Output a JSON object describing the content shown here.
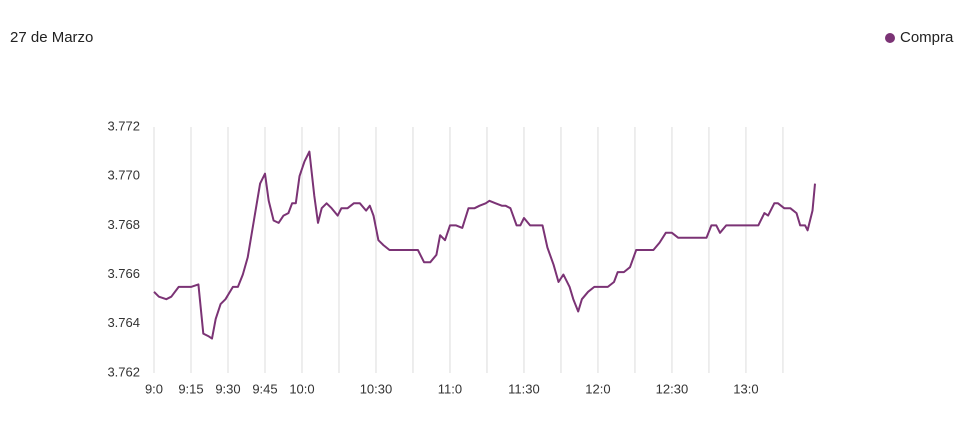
{
  "chart_data": {
    "type": "line",
    "title": "27 de Marzo",
    "x": [
      540,
      542,
      545,
      547,
      550,
      552,
      555,
      558,
      560,
      562,
      563.5,
      565,
      567,
      569,
      572,
      574,
      576,
      578,
      580.5,
      583,
      585,
      586.5,
      588.5,
      590.5,
      592.5,
      594.5,
      596,
      597.5,
      599,
      601,
      603,
      605,
      606.5,
      608,
      610,
      612,
      614.5,
      616,
      618.5,
      621,
      623.5,
      626,
      627.5,
      629,
      631,
      633,
      635.5,
      639.5,
      644,
      647,
      649.5,
      652,
      654.5,
      656,
      658,
      660,
      662.5,
      665,
      667.5,
      670,
      672,
      674.5,
      676,
      678.5,
      681,
      682.5,
      684.5,
      687,
      688.5,
      690,
      692.5,
      695,
      697.5,
      699.5,
      702,
      704,
      706,
      708.5,
      710,
      712,
      713.5,
      716,
      718.5,
      721,
      724,
      726.5,
      728,
      730.5,
      733,
      735.5,
      738,
      740,
      742.5,
      745,
      747.5,
      750,
      752.5,
      755.5,
      759,
      761.5,
      764,
      766,
      768,
      769.5,
      772,
      775,
      779,
      782.5,
      785,
      787.5,
      789,
      791.5,
      793,
      795.5,
      798,
      800.5,
      802,
      804,
      805,
      807,
      808
    ],
    "series": [
      {
        "name": "Compra",
        "color": "#7b3375",
        "values": [
          3.7653,
          3.7651,
          3.765,
          3.7651,
          3.7655,
          3.7655,
          3.7655,
          3.7656,
          3.7636,
          3.7635,
          3.7634,
          3.7642,
          3.7648,
          3.765,
          3.7655,
          3.7655,
          3.766,
          3.7667,
          3.7682,
          3.7697,
          3.7701,
          3.769,
          3.7682,
          3.7681,
          3.7684,
          3.7685,
          3.7689,
          3.7689,
          3.77,
          3.7706,
          3.771,
          3.7692,
          3.7681,
          3.7687,
          3.7689,
          3.7687,
          3.7684,
          3.7687,
          3.7687,
          3.7689,
          3.7689,
          3.7686,
          3.7688,
          3.7684,
          3.7674,
          3.7672,
          3.767,
          3.767,
          3.767,
          3.767,
          3.7665,
          3.7665,
          3.7668,
          3.7676,
          3.7674,
          3.768,
          3.768,
          3.7679,
          3.7687,
          3.7687,
          3.7688,
          3.7689,
          3.769,
          3.7689,
          3.7688,
          3.7688,
          3.7687,
          3.768,
          3.768,
          3.7683,
          3.768,
          3.768,
          3.768,
          3.7671,
          3.7664,
          3.7657,
          3.766,
          3.7655,
          3.765,
          3.7645,
          3.765,
          3.7653,
          3.7655,
          3.7655,
          3.7655,
          3.7657,
          3.7661,
          3.7661,
          3.7663,
          3.767,
          3.767,
          3.767,
          3.767,
          3.7673,
          3.7677,
          3.7677,
          3.7675,
          3.7675,
          3.7675,
          3.7675,
          3.7675,
          3.768,
          3.768,
          3.7677,
          3.768,
          3.768,
          3.768,
          3.768,
          3.768,
          3.7685,
          3.7684,
          3.7689,
          3.7689,
          3.7687,
          3.7687,
          3.7685,
          3.768,
          3.768,
          3.7678,
          3.7686,
          3.7697
        ]
      }
    ],
    "xlim": [
      540,
      808
    ],
    "xticks": [
      {
        "value": 540,
        "label": "9:0"
      },
      {
        "value": 555,
        "label": "9:15"
      },
      {
        "value": 570,
        "label": "9:30"
      },
      {
        "value": 585,
        "label": "9:45"
      },
      {
        "value": 600,
        "label": "10:0"
      },
      {
        "value": 615,
        "label": null
      },
      {
        "value": 630,
        "label": "10:30"
      },
      {
        "value": 645,
        "label": null
      },
      {
        "value": 660,
        "label": "11:0"
      },
      {
        "value": 675,
        "label": null
      },
      {
        "value": 690,
        "label": "11:30"
      },
      {
        "value": 705,
        "label": null
      },
      {
        "value": 720,
        "label": "12:0"
      },
      {
        "value": 735,
        "label": null
      },
      {
        "value": 750,
        "label": "12:30"
      },
      {
        "value": 765,
        "label": null
      },
      {
        "value": 780,
        "label": "13:0"
      },
      {
        "value": 795,
        "label": null
      }
    ],
    "ylim": [
      3.762,
      3.772
    ],
    "yticks": [
      3.762,
      3.764,
      3.766,
      3.768,
      {
        "value": 3.77,
        "label": "3.770"
      },
      3.772
    ],
    "grid": true
  }
}
